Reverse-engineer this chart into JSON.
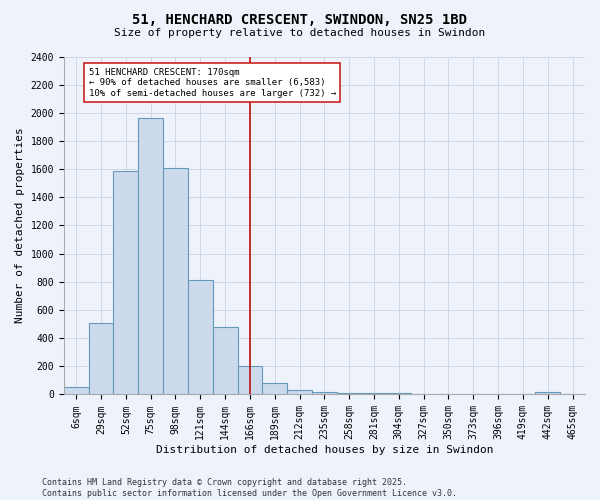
{
  "title": "51, HENCHARD CRESCENT, SWINDON, SN25 1BD",
  "subtitle": "Size of property relative to detached houses in Swindon",
  "xlabel": "Distribution of detached houses by size in Swindon",
  "ylabel": "Number of detached properties",
  "footer_line1": "Contains HM Land Registry data © Crown copyright and database right 2025.",
  "footer_line2": "Contains public sector information licensed under the Open Government Licence v3.0.",
  "categories": [
    "6sqm",
    "29sqm",
    "52sqm",
    "75sqm",
    "98sqm",
    "121sqm",
    "144sqm",
    "166sqm",
    "189sqm",
    "212sqm",
    "235sqm",
    "258sqm",
    "281sqm",
    "304sqm",
    "327sqm",
    "350sqm",
    "373sqm",
    "396sqm",
    "419sqm",
    "442sqm",
    "465sqm"
  ],
  "values": [
    55,
    510,
    1590,
    1960,
    1610,
    810,
    480,
    200,
    85,
    35,
    20,
    13,
    10,
    8,
    5,
    2,
    0,
    0,
    0,
    18,
    0
  ],
  "bar_color": "#ccdaec",
  "bar_edge_color": "#6699bb",
  "grid_color": "#d0d8e8",
  "background_color": "#eef2fb",
  "vline_x": 7,
  "vline_color": "#bb1111",
  "annotation_text": "51 HENCHARD CRESCENT: 170sqm\n← 90% of detached houses are smaller (6,583)\n10% of semi-detached houses are larger (732) →",
  "annotation_box_color": "#ffffff",
  "annotation_box_edge_color": "#cc2222",
  "ylim": [
    0,
    2400
  ],
  "yticks": [
    0,
    200,
    400,
    600,
    800,
    1000,
    1200,
    1400,
    1600,
    1800,
    2000,
    2200,
    2400
  ],
  "title_fontsize": 10,
  "subtitle_fontsize": 8,
  "tick_fontsize": 7,
  "axis_label_fontsize": 8,
  "footer_fontsize": 6
}
